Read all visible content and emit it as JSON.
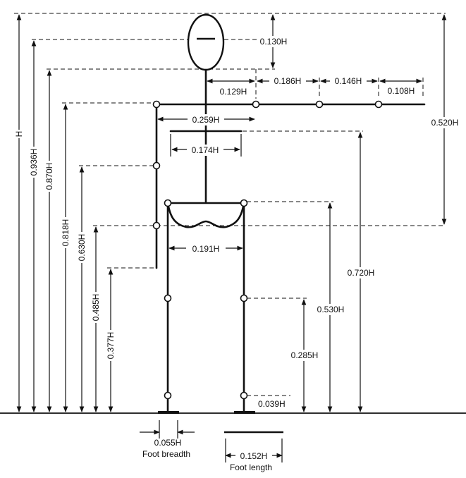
{
  "diagram": {
    "colors": {
      "ink": "#111111",
      "paper": "#ffffff"
    },
    "labels": {
      "H": "H",
      "h_0936": "0.936H",
      "h_0870": "0.870H",
      "h_0818": "0.818H",
      "h_0630": "0.630H",
      "h_0485": "0.485H",
      "h_0377": "0.377H",
      "head": "0.130H",
      "arm_upper": "0.186H",
      "arm_fore": "0.146H",
      "hand": "0.108H",
      "shoulder_offset": "0.129H",
      "shoulder_width": "0.259H",
      "chest_width": "0.174H",
      "hip_width": "0.191H",
      "shoulder_to_hip": "0.520H",
      "chest_height": "0.720H",
      "hip_height": "0.530H",
      "knee_height": "0.285H",
      "ankle_height": "0.039H",
      "foot_breadth_value": "0.055H",
      "foot_breadth_caption": "Foot breadth",
      "foot_length_value": "0.152H",
      "foot_length_caption": "Foot length"
    }
  }
}
